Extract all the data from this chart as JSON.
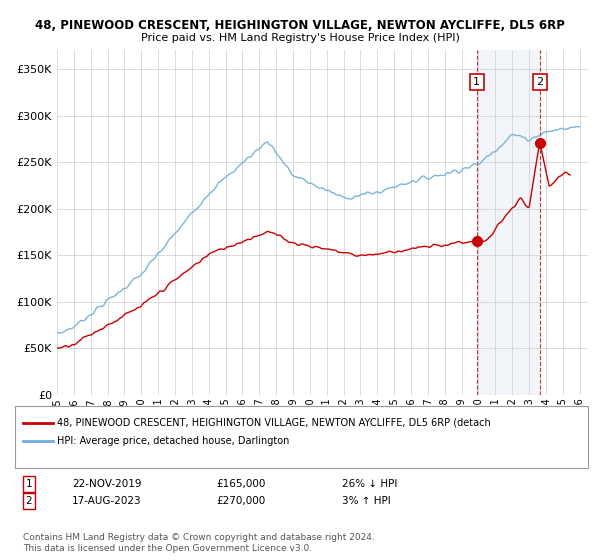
{
  "title_line1": "48, PINEWOOD CRESCENT, HEIGHINGTON VILLAGE, NEWTON AYCLIFFE, DL5 6RP",
  "title_line2": "Price paid vs. HM Land Registry's House Price Index (HPI)",
  "ylabel_ticks": [
    "£0",
    "£50K",
    "£100K",
    "£150K",
    "£200K",
    "£250K",
    "£300K",
    "£350K"
  ],
  "ytick_vals": [
    0,
    50000,
    100000,
    150000,
    200000,
    250000,
    300000,
    350000
  ],
  "ylim": [
    0,
    370000
  ],
  "xlim_start": 1995.0,
  "xlim_end": 2026.5,
  "hpi_color": "#6baed6",
  "price_color": "#cc0000",
  "highlight_color": "#d6e4f0",
  "background_color": "#ffffff",
  "grid_color": "#cccccc",
  "sale1_year": 2019.9,
  "sale1_price": 165000,
  "sale1_label": "1",
  "sale1_date": "22-NOV-2019",
  "sale1_amount": "£165,000",
  "sale1_hpi": "26% ↓ HPI",
  "sale2_year": 2023.63,
  "sale2_price": 270000,
  "sale2_label": "2",
  "sale2_date": "17-AUG-2023",
  "sale2_amount": "£270,000",
  "sale2_hpi": "3% ↑ HPI",
  "legend_line1": "48, PINEWOOD CRESCENT, HEIGHINGTON VILLAGE, NEWTON AYCLIFFE, DL5 6RP (detach",
  "legend_line2": "HPI: Average price, detached house, Darlington",
  "footer": "Contains HM Land Registry data © Crown copyright and database right 2024.\nThis data is licensed under the Open Government Licence v3.0.",
  "xtick_years": [
    1995,
    1996,
    1997,
    1998,
    1999,
    2000,
    2001,
    2002,
    2003,
    2004,
    2005,
    2006,
    2007,
    2008,
    2009,
    2010,
    2011,
    2012,
    2013,
    2014,
    2015,
    2016,
    2017,
    2018,
    2019,
    2020,
    2021,
    2022,
    2023,
    2024,
    2025,
    2026
  ]
}
